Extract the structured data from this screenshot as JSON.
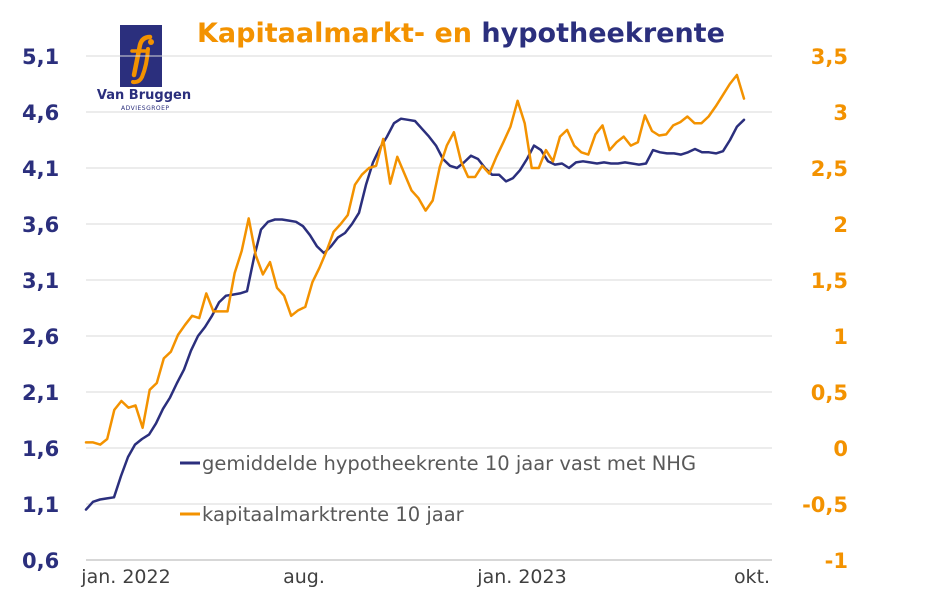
{
  "title": {
    "part1": "Kapitaalmarkt- en",
    "part2": "hypotheekrente"
  },
  "logo": {
    "name": "Van Bruggen",
    "sub": "ADVIESGROEP",
    "icon": "fj-monogram-icon"
  },
  "colors": {
    "navy": "#2b2f7d",
    "orange": "#f39200",
    "grid": "#d9d9d9",
    "axis": "#bfbfbf",
    "text": "#595959"
  },
  "chart_data": {
    "type": "line",
    "x_ticks": [
      "jan. 2022",
      "aug.",
      "jan. 2023",
      "okt."
    ],
    "grid": true,
    "legend_position": "bottom-center",
    "y_left": {
      "ticks": [
        "0,6",
        "1,1",
        "1,6",
        "2,1",
        "2,6",
        "3,1",
        "3,6",
        "4,1",
        "4,6",
        "5,1"
      ],
      "range": [
        0.6,
        5.1
      ]
    },
    "y_right": {
      "ticks": [
        "-1",
        "-0,5",
        "0",
        "0,5",
        "1",
        "1,5",
        "2",
        "2,5",
        "3",
        "3,5"
      ],
      "range": [
        -1,
        3.5
      ]
    },
    "series": [
      {
        "name": "gemiddelde hypotheekrente 10 jaar vast met NHG",
        "axis": "left",
        "color": "#2b2f7d",
        "values": [
          1.05,
          1.12,
          1.14,
          1.15,
          1.16,
          1.35,
          1.52,
          1.63,
          1.68,
          1.72,
          1.82,
          1.95,
          2.05,
          2.18,
          2.3,
          2.47,
          2.6,
          2.68,
          2.78,
          2.9,
          2.96,
          2.97,
          2.98,
          3.0,
          3.3,
          3.55,
          3.62,
          3.64,
          3.64,
          3.63,
          3.62,
          3.58,
          3.5,
          3.4,
          3.34,
          3.4,
          3.48,
          3.52,
          3.6,
          3.7,
          3.95,
          4.15,
          4.28,
          4.38,
          4.5,
          4.54,
          4.53,
          4.52,
          4.45,
          4.38,
          4.3,
          4.18,
          4.12,
          4.1,
          4.15,
          4.21,
          4.18,
          4.1,
          4.04,
          4.04,
          3.98,
          4.01,
          4.08,
          4.18,
          4.3,
          4.26,
          4.16,
          4.13,
          4.14,
          4.1,
          4.15,
          4.16,
          4.15,
          4.14,
          4.15,
          4.14,
          4.14,
          4.15,
          4.14,
          4.13,
          4.14,
          4.26,
          4.24,
          4.23,
          4.23,
          4.22,
          4.24,
          4.27,
          4.24,
          4.24,
          4.23,
          4.25,
          4.35,
          4.47,
          4.53
        ]
      },
      {
        "name": "kapitaalmarktrente 10 jaar",
        "axis": "right",
        "color": "#f39200",
        "values": [
          0.05,
          0.05,
          0.03,
          0.08,
          0.34,
          0.42,
          0.36,
          0.38,
          0.18,
          0.52,
          0.58,
          0.8,
          0.86,
          1.01,
          1.1,
          1.18,
          1.16,
          1.38,
          1.22,
          1.22,
          1.22,
          1.56,
          1.76,
          2.05,
          1.72,
          1.55,
          1.66,
          1.43,
          1.36,
          1.18,
          1.23,
          1.26,
          1.48,
          1.61,
          1.76,
          1.93,
          2.0,
          2.08,
          2.35,
          2.44,
          2.5,
          2.52,
          2.76,
          2.36,
          2.6,
          2.45,
          2.3,
          2.23,
          2.12,
          2.21,
          2.51,
          2.7,
          2.82,
          2.56,
          2.42,
          2.42,
          2.52,
          2.45,
          2.6,
          2.73,
          2.87,
          3.1,
          2.9,
          2.5,
          2.5,
          2.66,
          2.56,
          2.78,
          2.84,
          2.7,
          2.64,
          2.62,
          2.8,
          2.88,
          2.66,
          2.73,
          2.78,
          2.7,
          2.73,
          2.97,
          2.83,
          2.79,
          2.8,
          2.88,
          2.91,
          2.96,
          2.9,
          2.9,
          2.96,
          3.05,
          3.15,
          3.25,
          3.33,
          3.12
        ]
      }
    ]
  }
}
